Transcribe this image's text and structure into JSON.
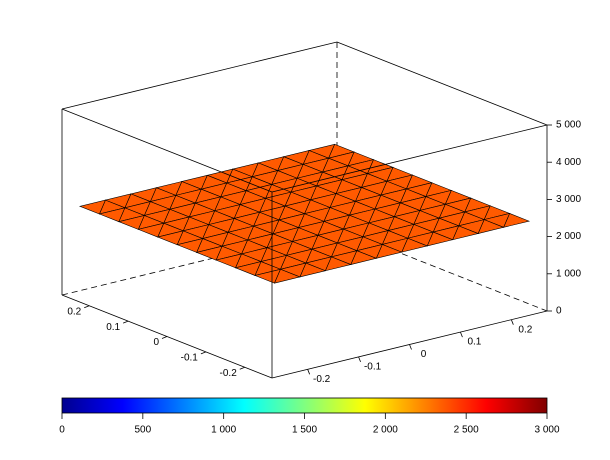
{
  "chart_data": {
    "type": "surface",
    "x": [
      -0.25,
      -0.2,
      -0.15,
      -0.1,
      -0.05,
      0,
      0.05,
      0.1,
      0.15,
      0.2,
      0.25
    ],
    "y": [
      -0.25,
      -0.2,
      -0.15,
      -0.1,
      -0.05,
      0,
      0.05,
      0.1,
      0.15,
      0.2,
      0.25
    ],
    "z": [
      [
        2400,
        2400,
        2400,
        2400,
        2400,
        2400,
        2400,
        2400,
        2400,
        2400,
        2400
      ],
      [
        2400,
        2400,
        2400,
        2400,
        2400,
        2400,
        2400,
        2400,
        2400,
        2400,
        2400
      ],
      [
        2400,
        2400,
        2400,
        2400,
        2400,
        2400,
        2400,
        2400,
        2400,
        2400,
        2400
      ],
      [
        2400,
        2400,
        2400,
        2400,
        2400,
        2400,
        2400,
        2400,
        2400,
        2400,
        2400
      ],
      [
        2400,
        2400,
        2400,
        2400,
        2400,
        2400,
        2400,
        2400,
        2400,
        2400,
        2400
      ],
      [
        2400,
        2400,
        2400,
        2400,
        2400,
        2400,
        2400,
        2400,
        2400,
        2400,
        2400
      ],
      [
        2400,
        2400,
        2400,
        2400,
        2400,
        2400,
        2400,
        2400,
        2400,
        2400,
        2400
      ],
      [
        2400,
        2400,
        2400,
        2400,
        2400,
        2400,
        2400,
        2400,
        2400,
        2400,
        2400
      ],
      [
        2400,
        2400,
        2400,
        2400,
        2400,
        2400,
        2400,
        2400,
        2400,
        2400,
        2400
      ],
      [
        2400,
        2400,
        2400,
        2400,
        2400,
        2400,
        2400,
        2400,
        2400,
        2400,
        2400
      ],
      [
        2400,
        2400,
        2400,
        2400,
        2400,
        2400,
        2400,
        2400,
        2400,
        2400,
        2400
      ]
    ],
    "color": "#ff5a00",
    "edge_color": "#000000",
    "xlim": [
      -0.27,
      0.27
    ],
    "ylim": [
      -0.27,
      0.27
    ],
    "zlim": [
      0,
      5000
    ],
    "xticks": [
      -0.2,
      -0.1,
      0,
      0.1,
      0.2
    ],
    "yticks": [
      -0.2,
      -0.1,
      0,
      0.1,
      0.2
    ],
    "zticks": [
      0,
      {
        "value": 1000,
        "label": "1 000"
      },
      {
        "value": 2000,
        "label": "2 000"
      },
      {
        "value": 3000,
        "label": "3 000"
      },
      {
        "value": 4000,
        "label": "4 000"
      },
      {
        "value": 5000,
        "label": "5 000"
      }
    ],
    "colorbar": {
      "clim": [
        0,
        3000
      ],
      "ticks": [
        0,
        500,
        {
          "value": 1000,
          "label": "1 000"
        },
        {
          "value": 1500,
          "label": "1 500"
        },
        {
          "value": 2000,
          "label": "2 000"
        },
        {
          "value": 2500,
          "label": "2 500"
        },
        {
          "value": 3000,
          "label": "3 000"
        }
      ]
    }
  }
}
